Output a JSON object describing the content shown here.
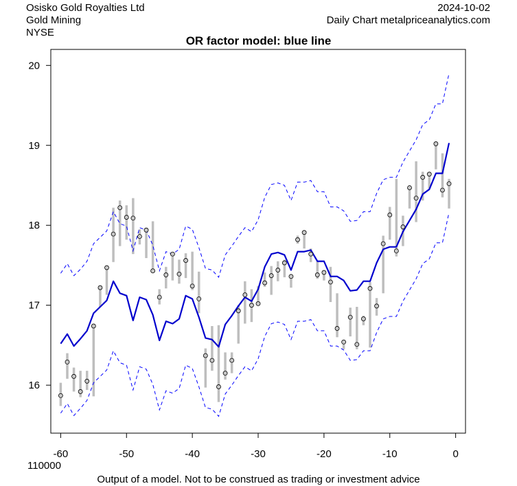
{
  "header": {
    "company": "Osisko Gold Royalties Ltd",
    "sector": "Gold Mining",
    "exchange": "NYSE",
    "date": "2024-10-02",
    "source": "Daily Chart metalpriceanalytics.com"
  },
  "footer": {
    "volume_label": "110000",
    "disclaimer": "Output of a model. Not to be construed as trading or investment advice"
  },
  "colors": {
    "model": "#0000cd",
    "range": "#bebebe",
    "band": "#0000ff"
  },
  "chart_data": {
    "type": "line",
    "title": "OR factor model: blue line",
    "xlabel": "",
    "ylabel": "",
    "xlim": [
      -61.5,
      1.5
    ],
    "ylim": [
      15.4,
      20.2
    ],
    "xticks": [
      -60,
      -50,
      -40,
      -30,
      -20,
      -10,
      0
    ],
    "yticks": [
      16,
      17,
      18,
      19,
      20
    ],
    "x": [
      -60,
      -59,
      -58,
      -57,
      -56,
      -55,
      -54,
      -53,
      -52,
      -51,
      -50,
      -49,
      -48,
      -47,
      -46,
      -45,
      -44,
      -43,
      -42,
      -41,
      -40,
      -39,
      -38,
      -37,
      -36,
      -35,
      -34,
      -33,
      -32,
      -31,
      -30,
      -29,
      -28,
      -27,
      -26,
      -25,
      -24,
      -23,
      -22,
      -21,
      -20,
      -19,
      -18,
      -17,
      -16,
      -15,
      -14,
      -13,
      -12,
      -11,
      -10,
      -9,
      -8,
      -7,
      -6,
      -5,
      -4,
      -3,
      -2,
      -1
    ],
    "model": [
      16.52,
      16.64,
      16.49,
      16.58,
      16.68,
      16.9,
      16.98,
      17.06,
      17.3,
      17.15,
      17.12,
      16.81,
      17.1,
      17.07,
      16.88,
      16.56,
      16.8,
      16.77,
      16.83,
      17.12,
      17.08,
      16.85,
      16.59,
      16.57,
      16.48,
      16.76,
      16.87,
      16.99,
      17.1,
      17.05,
      17.2,
      17.48,
      17.64,
      17.66,
      17.63,
      17.44,
      17.67,
      17.67,
      17.69,
      17.55,
      17.55,
      17.36,
      17.36,
      17.31,
      17.18,
      17.19,
      17.3,
      17.3,
      17.53,
      17.7,
      17.73,
      17.73,
      17.92,
      18.06,
      18.2,
      18.39,
      18.45,
      18.65,
      18.65,
      19.03
    ],
    "upper": [
      17.4,
      17.52,
      17.37,
      17.45,
      17.55,
      17.77,
      17.85,
      17.93,
      18.17,
      18.02,
      17.99,
      17.68,
      17.97,
      17.94,
      17.75,
      17.43,
      17.67,
      17.64,
      17.7,
      17.99,
      17.95,
      17.72,
      17.46,
      17.44,
      17.35,
      17.63,
      17.74,
      17.86,
      17.97,
      17.92,
      18.07,
      18.35,
      18.51,
      18.53,
      18.5,
      18.31,
      18.54,
      18.54,
      18.56,
      18.42,
      18.42,
      18.23,
      18.23,
      18.18,
      18.05,
      18.06,
      18.17,
      18.17,
      18.4,
      18.57,
      18.6,
      18.6,
      18.79,
      18.93,
      19.07,
      19.26,
      19.32,
      19.52,
      19.52,
      19.9
    ],
    "lower": [
      15.65,
      15.77,
      15.62,
      15.71,
      15.81,
      16.03,
      16.11,
      16.19,
      16.43,
      16.28,
      16.25,
      15.94,
      16.23,
      16.2,
      16.01,
      15.69,
      15.93,
      15.9,
      15.96,
      16.25,
      16.21,
      15.98,
      15.72,
      15.7,
      15.61,
      15.89,
      16.0,
      16.12,
      16.23,
      16.18,
      16.33,
      16.61,
      16.77,
      16.79,
      16.76,
      16.57,
      16.8,
      16.8,
      16.82,
      16.68,
      16.68,
      16.49,
      16.49,
      16.44,
      16.31,
      16.32,
      16.43,
      16.43,
      16.66,
      16.83,
      16.86,
      16.86,
      17.05,
      17.19,
      17.33,
      17.52,
      17.58,
      17.78,
      17.78,
      18.16
    ],
    "close": [
      15.87,
      16.29,
      16.11,
      15.92,
      16.05,
      16.74,
      17.22,
      17.47,
      17.89,
      18.22,
      18.1,
      18.09,
      17.86,
      17.94,
      17.43,
      17.1,
      17.38,
      17.64,
      17.39,
      17.56,
      17.24,
      17.08,
      16.37,
      16.31,
      15.98,
      16.15,
      16.31,
      16.93,
      17.13,
      17.0,
      17.02,
      17.28,
      17.37,
      17.44,
      17.53,
      17.36,
      17.82,
      17.91,
      17.64,
      17.38,
      17.41,
      17.29,
      16.71,
      16.54,
      16.85,
      16.51,
      16.83,
      17.21,
      16.99,
      17.77,
      18.13,
      17.68,
      17.98,
      18.47,
      18.34,
      18.6,
      18.64,
      19.02,
      18.44,
      18.52
    ],
    "high": [
      16.03,
      16.4,
      16.22,
      16.18,
      16.18,
      16.76,
      17.22,
      17.47,
      18.22,
      18.31,
      18.25,
      18.34,
      17.95,
      17.97,
      18.05,
      17.2,
      17.48,
      17.66,
      17.57,
      17.65,
      17.67,
      17.42,
      16.46,
      16.74,
      16.75,
      16.41,
      16.41,
      17.0,
      17.3,
      17.2,
      17.24,
      17.41,
      17.49,
      17.55,
      17.57,
      17.39,
      17.87,
      17.93,
      17.71,
      17.55,
      17.43,
      17.48,
      17.15,
      16.57,
      16.97,
      16.98,
      16.87,
      17.29,
      17.09,
      17.87,
      18.23,
      18.58,
      18.12,
      18.5,
      18.8,
      18.67,
      18.65,
      19.04,
      18.9,
      18.58
    ],
    "low": [
      15.74,
      16.08,
      15.92,
      15.85,
      15.94,
      15.86,
      16.98,
      17.13,
      17.54,
      17.74,
      17.82,
      17.64,
      17.76,
      17.59,
      17.41,
      17.01,
      17.21,
      17.31,
      17.27,
      17.34,
      17.19,
      16.9,
      15.97,
      16.18,
      15.79,
      16.07,
      16.15,
      16.52,
      16.77,
      16.79,
      17.0,
      17.23,
      17.13,
      17.3,
      17.35,
      17.22,
      17.77,
      17.71,
      17.54,
      17.33,
      17.31,
      17.04,
      16.6,
      16.45,
      16.61,
      16.45,
      16.75,
      16.47,
      16.87,
      17.15,
      17.82,
      17.61,
      17.74,
      18.21,
      18.04,
      18.31,
      18.46,
      18.7,
      18.35,
      18.21
    ],
    "series": [
      {
        "name": "model",
        "style": "solid"
      },
      {
        "name": "upper",
        "style": "dashed"
      },
      {
        "name": "lower",
        "style": "dashed"
      }
    ]
  }
}
